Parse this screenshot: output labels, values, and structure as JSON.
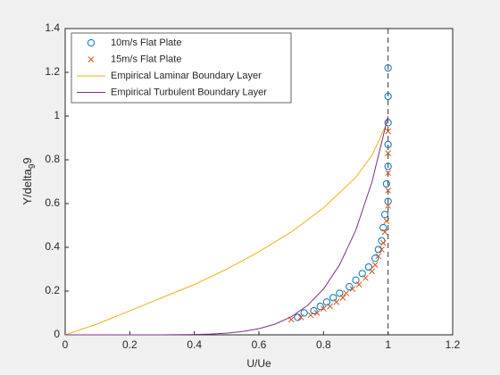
{
  "chart_data": {
    "type": "line",
    "xlabel": "U/Ue",
    "ylabel": [
      "Y/delta",
      "9",
      "9"
    ],
    "xlim": [
      0,
      1.2
    ],
    "xticks": [
      0,
      0.2,
      0.4,
      0.6,
      0.8,
      1,
      1.2
    ],
    "ylim": [
      0,
      1.4
    ],
    "yticks": [
      0,
      0.2,
      0.4,
      0.6,
      0.8,
      1,
      1.2,
      1.4
    ],
    "vline": 1,
    "legend": "upper left",
    "series": [
      {
        "name": "10m/s Flat Plate",
        "color": "#0072bd",
        "style": "circle",
        "x": [
          0.72,
          0.74,
          0.77,
          0.79,
          0.81,
          0.83,
          0.85,
          0.88,
          0.9,
          0.92,
          0.94,
          0.96,
          0.97,
          0.98,
          0.985,
          0.99,
          1.0,
          0.995,
          1.0,
          1.0,
          1.0,
          1.0,
          1.0
        ],
        "values": [
          0.08,
          0.1,
          0.11,
          0.13,
          0.15,
          0.17,
          0.19,
          0.22,
          0.25,
          0.28,
          0.31,
          0.35,
          0.39,
          0.43,
          0.49,
          0.55,
          0.61,
          0.69,
          0.77,
          0.87,
          0.97,
          1.09,
          1.22
        ]
      },
      {
        "name": "15m/s Flat Plate",
        "color": "#d95319",
        "style": "cross",
        "x": [
          0.7,
          0.73,
          0.76,
          0.78,
          0.8,
          0.82,
          0.84,
          0.86,
          0.87,
          0.89,
          0.91,
          0.93,
          0.95,
          0.96,
          0.97,
          0.98,
          0.985,
          0.99,
          0.995,
          1.0,
          1.0,
          1.0,
          1.0,
          1.0
        ],
        "values": [
          0.07,
          0.08,
          0.09,
          0.1,
          0.12,
          0.13,
          0.15,
          0.17,
          0.19,
          0.21,
          0.23,
          0.26,
          0.29,
          0.32,
          0.36,
          0.39,
          0.42,
          0.47,
          0.52,
          0.59,
          0.66,
          0.74,
          0.83,
          0.93
        ]
      },
      {
        "name": "Empirical Laminar Boundary Layer",
        "color": "#edb120",
        "style": "line",
        "x": [
          0,
          0.1,
          0.2,
          0.3,
          0.4,
          0.5,
          0.6,
          0.7,
          0.8,
          0.9,
          0.95,
          1.0
        ],
        "values": [
          0,
          0.05,
          0.11,
          0.17,
          0.23,
          0.3,
          0.38,
          0.47,
          0.58,
          0.72,
          0.82,
          0.98
        ]
      },
      {
        "name": "Empirical Turbulent Boundary Layer",
        "color": "#7e2f8e",
        "style": "line",
        "x": [
          0,
          0.2,
          0.3,
          0.4,
          0.45,
          0.5,
          0.55,
          0.6,
          0.65,
          0.7,
          0.75,
          0.8,
          0.85,
          0.9,
          0.95,
          1.0
        ],
        "values": [
          0,
          0,
          0.0002,
          0.0016,
          0.0037,
          0.0078,
          0.0152,
          0.028,
          0.049,
          0.0824,
          0.1335,
          0.2097,
          0.3206,
          0.4783,
          0.6983,
          1.0
        ]
      }
    ]
  }
}
